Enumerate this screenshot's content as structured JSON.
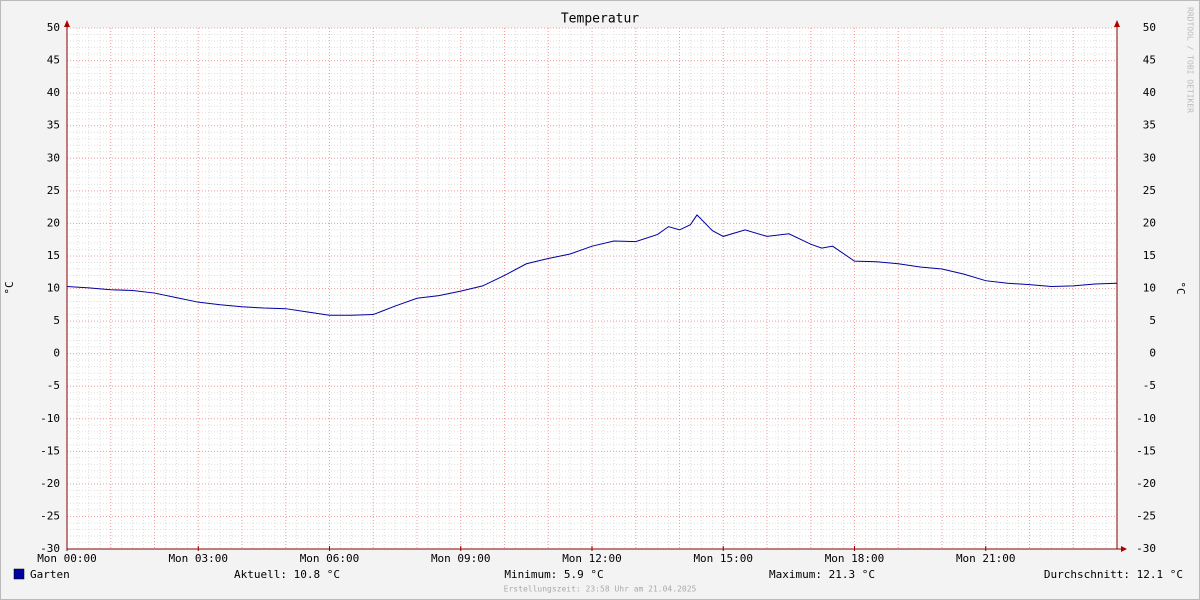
{
  "chart_data": {
    "type": "line",
    "title": "Temperatur",
    "y_label": "°C",
    "y2_label": "°C",
    "watermark": "RRDTOOL / TOBI OETIKER",
    "footer": "Erstellungszeit: 23:58 Uhr am 21.04.2025",
    "x": [
      0,
      0.5,
      1,
      1.5,
      2,
      2.5,
      3,
      3.5,
      4,
      4.5,
      5,
      5.5,
      6,
      6.5,
      7,
      7.5,
      8,
      8.5,
      9,
      9.5,
      10,
      10.5,
      11,
      11.5,
      12,
      12.5,
      13,
      13.5,
      13.75,
      14,
      14.25,
      14.4,
      14.75,
      15,
      15.5,
      16,
      16.5,
      17,
      17.25,
      17.5,
      18,
      18.5,
      19,
      19.5,
      20,
      20.5,
      21,
      21.5,
      22,
      22.5,
      23,
      23.5,
      24
    ],
    "series": [
      {
        "name": "Garten",
        "color": "#0000a0",
        "values": [
          10.3,
          10.1,
          9.8,
          9.7,
          9.3,
          8.6,
          7.9,
          7.5,
          7.2,
          7.0,
          6.9,
          6.4,
          5.9,
          5.9,
          6.0,
          7.3,
          8.5,
          8.9,
          9.6,
          10.4,
          12.0,
          13.8,
          14.6,
          15.3,
          16.5,
          17.3,
          17.2,
          18.3,
          19.5,
          19.0,
          19.8,
          21.3,
          18.9,
          18.0,
          19.0,
          18.0,
          18.4,
          16.8,
          16.2,
          16.5,
          14.2,
          14.1,
          13.8,
          13.3,
          13.0,
          12.2,
          11.2,
          10.8,
          10.6,
          10.3,
          10.4,
          10.7,
          10.8
        ]
      }
    ],
    "xlim": [
      0,
      24
    ],
    "xticks": [
      {
        "value": 0,
        "label": "Mon 00:00"
      },
      {
        "value": 3,
        "label": "Mon 03:00"
      },
      {
        "value": 6,
        "label": "Mon 06:00"
      },
      {
        "value": 9,
        "label": "Mon 09:00"
      },
      {
        "value": 12,
        "label": "Mon 12:00"
      },
      {
        "value": 15,
        "label": "Mon 15:00"
      },
      {
        "value": 18,
        "label": "Mon 18:00"
      },
      {
        "value": 21,
        "label": "Mon 21:00"
      }
    ],
    "ylim": [
      -30,
      50
    ],
    "yticks": [
      -30,
      -25,
      -20,
      -15,
      -10,
      -5,
      0,
      5,
      10,
      15,
      20,
      25,
      30,
      35,
      40,
      45,
      50
    ],
    "grid": true,
    "stats": [
      "Aktuell: 10.8 °C",
      "Minimum: 5.9 °C",
      "Maximum: 21.3 °C",
      "Durchschnitt: 12.1 °C"
    ]
  }
}
